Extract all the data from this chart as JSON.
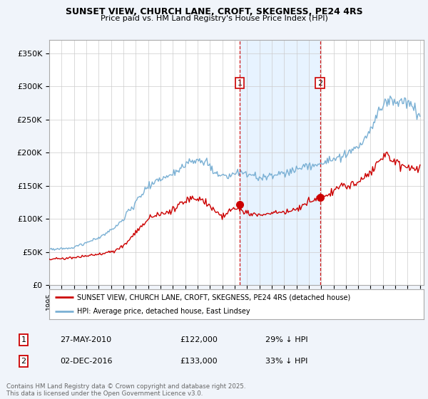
{
  "title": "SUNSET VIEW, CHURCH LANE, CROFT, SKEGNESS, PE24 4RS",
  "subtitle": "Price paid vs. HM Land Registry's House Price Index (HPI)",
  "ylim": [
    0,
    370000
  ],
  "yticks": [
    0,
    50000,
    100000,
    150000,
    200000,
    250000,
    300000,
    350000
  ],
  "ytick_labels": [
    "£0",
    "£50K",
    "£100K",
    "£150K",
    "£200K",
    "£250K",
    "£300K",
    "£350K"
  ],
  "legend_line1": "SUNSET VIEW, CHURCH LANE, CROFT, SKEGNESS, PE24 4RS (detached house)",
  "legend_line2": "HPI: Average price, detached house, East Lindsey",
  "footnote": "Contains HM Land Registry data © Crown copyright and database right 2025.\nThis data is licensed under the Open Government Licence v3.0.",
  "sale1_label": "1",
  "sale1_date": "27-MAY-2010",
  "sale1_price": "£122,000",
  "sale1_hpi": "29% ↓ HPI",
  "sale1_x": 2010.4,
  "sale1_y": 122000,
  "sale2_label": "2",
  "sale2_date": "02-DEC-2016",
  "sale2_price": "£133,000",
  "sale2_hpi": "33% ↓ HPI",
  "sale2_x": 2016.92,
  "sale2_y": 133000,
  "line_color_red": "#cc0000",
  "line_color_blue": "#7ab0d4",
  "shade_color": "#ddeeff",
  "vline_color": "#cc0000",
  "background_color": "#f0f4fa",
  "plot_bg": "#ffffff",
  "xlim_left": 1995,
  "xlim_right": 2025.3
}
